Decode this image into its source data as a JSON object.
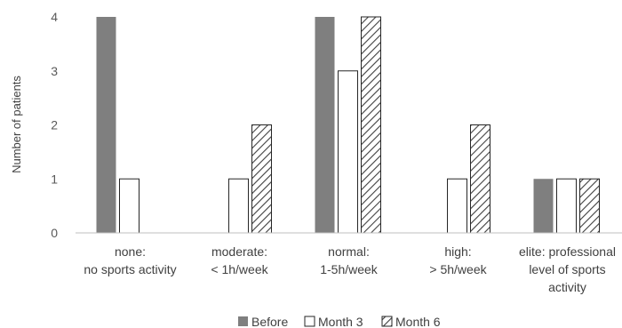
{
  "chart_data": {
    "type": "bar",
    "ylabel": "Number of patients",
    "xlabel": "",
    "ylim": [
      0,
      4
    ],
    "yticks": [
      "0",
      "1",
      "2",
      "3",
      "4"
    ],
    "categories": [
      [
        "none:",
        "no sports activity"
      ],
      [
        "moderate:",
        "< 1h/week"
      ],
      [
        "normal:",
        "1-5h/week"
      ],
      [
        "high:",
        "> 5h/week"
      ],
      [
        "elite: professional",
        "level of sports",
        "activity"
      ]
    ],
    "series": [
      {
        "name": "Before",
        "values": [
          4,
          0,
          4,
          0,
          1
        ]
      },
      {
        "name": "Month 3",
        "values": [
          1,
          1,
          3,
          1,
          1
        ]
      },
      {
        "name": "Month 6",
        "values": [
          0,
          2,
          4,
          2,
          1
        ]
      }
    ],
    "grid": false,
    "legend_position": "bottom",
    "colors": {
      "before": "#7f7f7f",
      "month3": "#ffffff",
      "month6": "#ffffff",
      "outline": "#262626",
      "hatch": "#404040",
      "axis": "#bfbfbf"
    }
  }
}
